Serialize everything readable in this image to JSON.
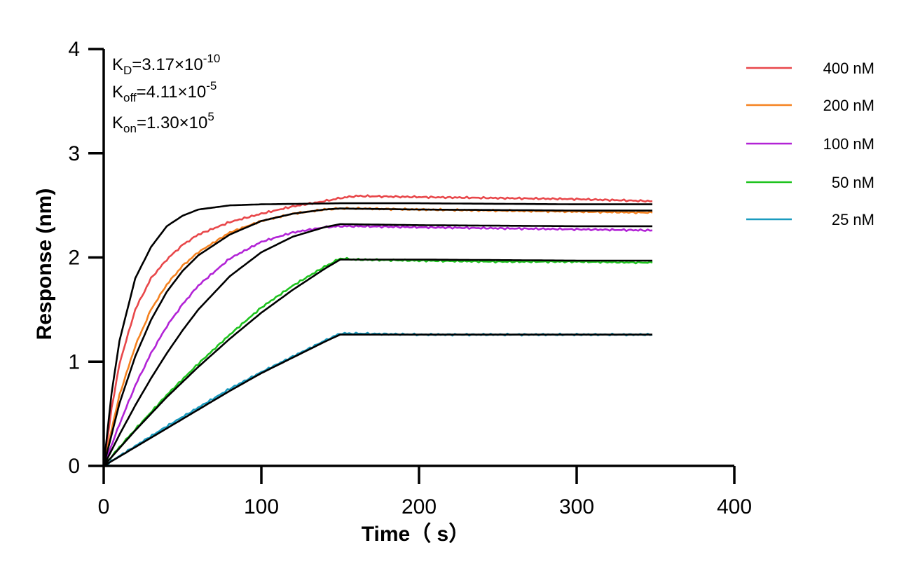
{
  "chart_data": {
    "type": "line",
    "title": "",
    "xlabel": "Time（ s）",
    "ylabel": "Response (nm)",
    "xlim": [
      0,
      400
    ],
    "ylim": [
      0,
      4
    ],
    "x_ticks": [
      "0",
      "100",
      "200",
      "300",
      "400"
    ],
    "y_ticks": [
      "0",
      "1",
      "2",
      "3",
      "4"
    ],
    "grid": false,
    "legend_position": "top-right",
    "association_end": 150,
    "dissociation_end": 348,
    "annotations": {
      "kd": {
        "base": "K",
        "sub": "D",
        "value": "=3.17×10",
        "exp": "-10"
      },
      "koff": {
        "base": "K",
        "sub": "off",
        "value": "=4.11×10",
        "exp": "-5"
      },
      "kon": {
        "base": "K",
        "sub": "on",
        "value": "=1.30×10",
        "exp": "5"
      }
    },
    "series": [
      {
        "name": "400 nM",
        "color": "#e8474a",
        "measured": [
          [
            0,
            0
          ],
          [
            5,
            0.55
          ],
          [
            10,
            0.98
          ],
          [
            20,
            1.5
          ],
          [
            30,
            1.8
          ],
          [
            40,
            1.98
          ],
          [
            50,
            2.12
          ],
          [
            60,
            2.22
          ],
          [
            80,
            2.34
          ],
          [
            100,
            2.42
          ],
          [
            120,
            2.49
          ],
          [
            140,
            2.54
          ],
          [
            150,
            2.57
          ],
          [
            160,
            2.59
          ],
          [
            200,
            2.58
          ],
          [
            250,
            2.57
          ],
          [
            300,
            2.56
          ],
          [
            348,
            2.54
          ]
        ],
        "fit": [
          [
            0,
            0
          ],
          [
            5,
            0.7
          ],
          [
            10,
            1.2
          ],
          [
            20,
            1.8
          ],
          [
            30,
            2.1
          ],
          [
            40,
            2.3
          ],
          [
            50,
            2.4
          ],
          [
            60,
            2.46
          ],
          [
            80,
            2.5
          ],
          [
            100,
            2.51
          ],
          [
            150,
            2.52
          ],
          [
            200,
            2.52
          ],
          [
            300,
            2.51
          ],
          [
            348,
            2.51
          ]
        ]
      },
      {
        "name": "200 nM",
        "color": "#f58220",
        "measured": [
          [
            0,
            0
          ],
          [
            5,
            0.35
          ],
          [
            10,
            0.68
          ],
          [
            20,
            1.15
          ],
          [
            30,
            1.5
          ],
          [
            40,
            1.74
          ],
          [
            50,
            1.92
          ],
          [
            60,
            2.05
          ],
          [
            80,
            2.24
          ],
          [
            100,
            2.35
          ],
          [
            120,
            2.42
          ],
          [
            140,
            2.46
          ],
          [
            150,
            2.47
          ],
          [
            160,
            2.47
          ],
          [
            200,
            2.46
          ],
          [
            250,
            2.45
          ],
          [
            300,
            2.44
          ],
          [
            348,
            2.43
          ]
        ],
        "fit": [
          [
            0,
            0
          ],
          [
            5,
            0.3
          ],
          [
            10,
            0.6
          ],
          [
            20,
            1.05
          ],
          [
            30,
            1.4
          ],
          [
            40,
            1.67
          ],
          [
            50,
            1.87
          ],
          [
            60,
            2.02
          ],
          [
            80,
            2.22
          ],
          [
            100,
            2.35
          ],
          [
            120,
            2.42
          ],
          [
            140,
            2.46
          ],
          [
            150,
            2.47
          ],
          [
            200,
            2.46
          ],
          [
            300,
            2.45
          ],
          [
            348,
            2.45
          ]
        ]
      },
      {
        "name": "100 nM",
        "color": "#b223d6",
        "measured": [
          [
            0,
            0
          ],
          [
            10,
            0.4
          ],
          [
            20,
            0.77
          ],
          [
            30,
            1.08
          ],
          [
            40,
            1.34
          ],
          [
            50,
            1.55
          ],
          [
            60,
            1.73
          ],
          [
            80,
            1.99
          ],
          [
            100,
            2.15
          ],
          [
            120,
            2.24
          ],
          [
            140,
            2.29
          ],
          [
            150,
            2.3
          ],
          [
            160,
            2.3
          ],
          [
            200,
            2.29
          ],
          [
            250,
            2.28
          ],
          [
            300,
            2.27
          ],
          [
            348,
            2.26
          ]
        ],
        "fit": [
          [
            0,
            0
          ],
          [
            10,
            0.3
          ],
          [
            20,
            0.58
          ],
          [
            30,
            0.84
          ],
          [
            40,
            1.08
          ],
          [
            50,
            1.3
          ],
          [
            60,
            1.5
          ],
          [
            80,
            1.82
          ],
          [
            100,
            2.05
          ],
          [
            120,
            2.2
          ],
          [
            140,
            2.29
          ],
          [
            150,
            2.32
          ],
          [
            200,
            2.31
          ],
          [
            300,
            2.3
          ],
          [
            348,
            2.3
          ]
        ]
      },
      {
        "name": "50 nM",
        "color": "#1ec31e",
        "measured": [
          [
            0,
            0
          ],
          [
            10,
            0.18
          ],
          [
            20,
            0.35
          ],
          [
            40,
            0.68
          ],
          [
            60,
            0.98
          ],
          [
            80,
            1.26
          ],
          [
            100,
            1.52
          ],
          [
            120,
            1.73
          ],
          [
            140,
            1.91
          ],
          [
            150,
            1.99
          ],
          [
            160,
            1.98
          ],
          [
            200,
            1.97
          ],
          [
            250,
            1.96
          ],
          [
            300,
            1.96
          ],
          [
            348,
            1.95
          ]
        ],
        "fit": [
          [
            0,
            0
          ],
          [
            10,
            0.17
          ],
          [
            20,
            0.34
          ],
          [
            40,
            0.66
          ],
          [
            60,
            0.95
          ],
          [
            80,
            1.22
          ],
          [
            100,
            1.47
          ],
          [
            120,
            1.69
          ],
          [
            140,
            1.89
          ],
          [
            150,
            1.98
          ],
          [
            200,
            1.98
          ],
          [
            300,
            1.97
          ],
          [
            348,
            1.97
          ]
        ]
      },
      {
        "name": "25 nM",
        "color": "#1a9bbf",
        "measured": [
          [
            0,
            0
          ],
          [
            20,
            0.19
          ],
          [
            40,
            0.38
          ],
          [
            60,
            0.56
          ],
          [
            80,
            0.74
          ],
          [
            100,
            0.9
          ],
          [
            120,
            1.05
          ],
          [
            140,
            1.2
          ],
          [
            150,
            1.27
          ],
          [
            160,
            1.27
          ],
          [
            200,
            1.26
          ],
          [
            250,
            1.26
          ],
          [
            300,
            1.26
          ],
          [
            348,
            1.26
          ]
        ],
        "fit": [
          [
            0,
            0
          ],
          [
            20,
            0.18
          ],
          [
            40,
            0.36
          ],
          [
            60,
            0.54
          ],
          [
            80,
            0.72
          ],
          [
            100,
            0.89
          ],
          [
            120,
            1.04
          ],
          [
            140,
            1.19
          ],
          [
            150,
            1.26
          ],
          [
            200,
            1.26
          ],
          [
            300,
            1.26
          ],
          [
            348,
            1.26
          ]
        ]
      }
    ]
  }
}
